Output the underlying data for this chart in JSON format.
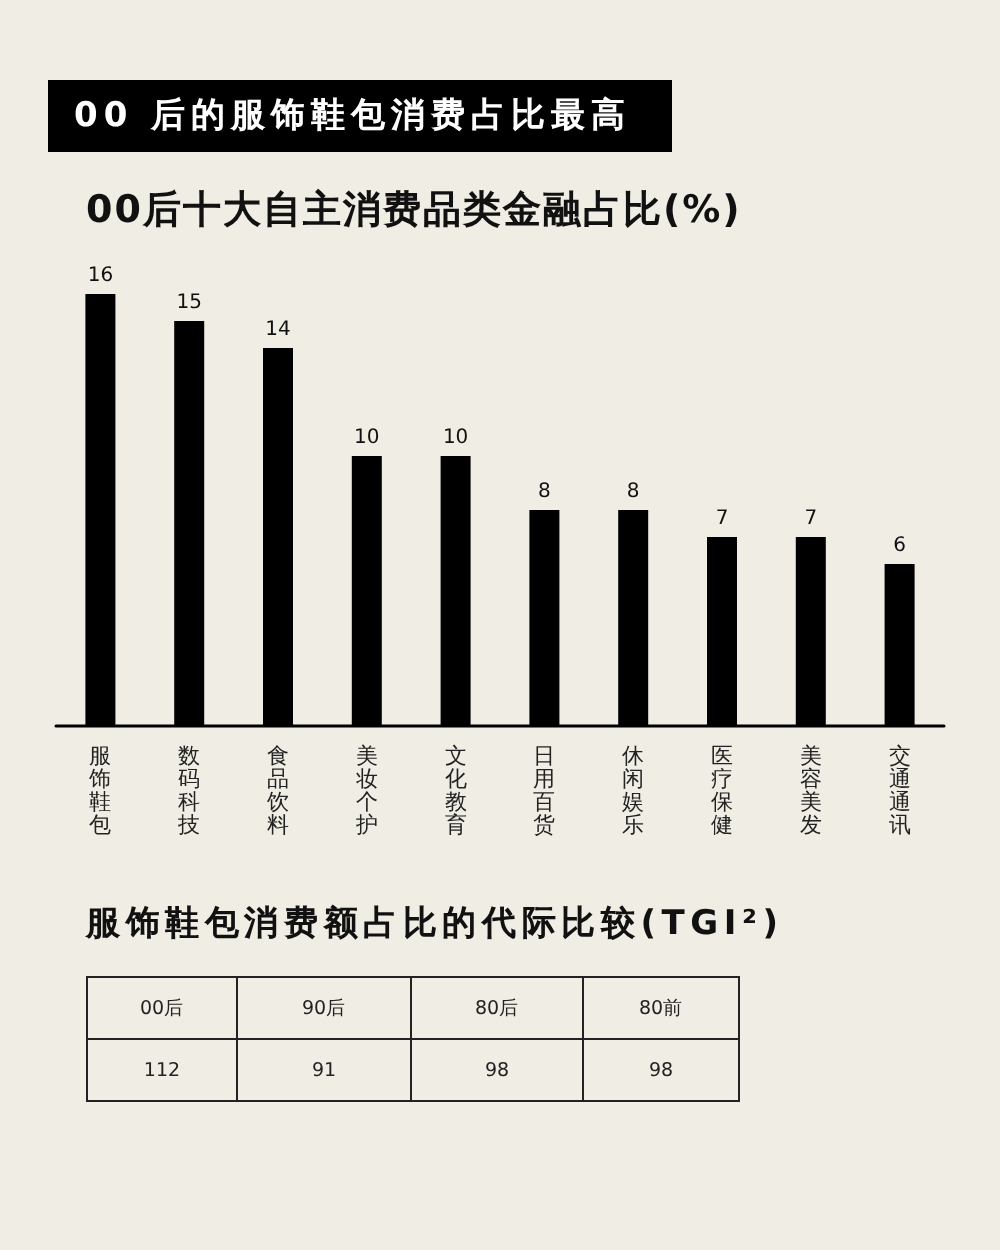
{
  "chart_data": [
    {
      "type": "bar",
      "title": "00 后的服饰鞋包消费占比最高",
      "subtitle": "00后十大自主消费品类金融占比(%)",
      "categories": [
        "服饰鞋包",
        "数码科技",
        "食品饮料",
        "美妆个护",
        "文化教育",
        "日用百货",
        "休闲娱乐",
        "医疗保健",
        "美容美发",
        "交通通讯"
      ],
      "values": [
        16,
        15,
        14,
        10,
        10,
        8,
        8,
        7,
        7,
        6
      ],
      "color": "#000000",
      "data_labels": true
    },
    {
      "type": "other",
      "title": "服饰鞋包消费额占比的代际比较(TGI²)",
      "categories": [
        "00后",
        "90后",
        "80后",
        "80前"
      ],
      "values": [
        112,
        91,
        98,
        98
      ],
      "data_labels": true
    }
  ]
}
